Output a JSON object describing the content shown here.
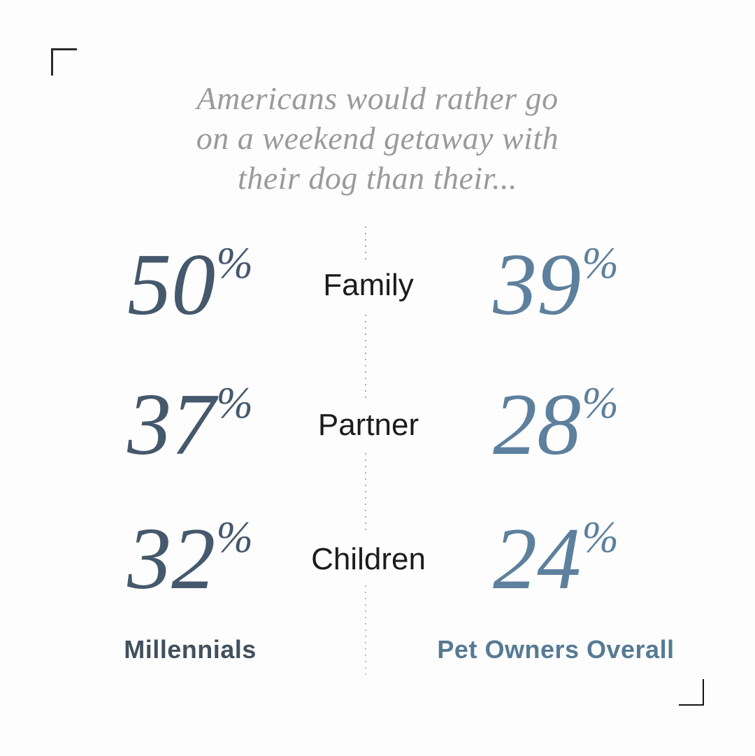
{
  "title": {
    "line1": "Americans would rather go",
    "line2": "on a weekend getaway with",
    "line3": "their dog than their..."
  },
  "chart_data": {
    "type": "table",
    "title": "Americans would rather go on a weekend getaway with their dog than their...",
    "categories": [
      "Family",
      "Partner",
      "Children"
    ],
    "series": [
      {
        "name": "Millennials",
        "values": [
          50,
          37,
          32
        ]
      },
      {
        "name": "Pet Owners Overall",
        "values": [
          39,
          28,
          24
        ]
      }
    ],
    "unit": "%",
    "layout": {
      "left_column_series": "Millennials",
      "right_column_series": "Pet Owners Overall",
      "divider": "vertical dotted line between columns",
      "legend_position": "bottom"
    }
  },
  "colors": {
    "background": "#fdfdfd",
    "title_text": "#9a9a9a",
    "millennials_stat": "#45586c",
    "pet_owners_stat": "#5d809d",
    "category_text": "#1c1c1c",
    "millennials_label": "#41505e",
    "pet_owners_label": "#567a94",
    "bracket": "#2a2a2a",
    "divider_dot_top": "#a5a3a4",
    "divider_dot_bottom": "#cdb9ca"
  }
}
